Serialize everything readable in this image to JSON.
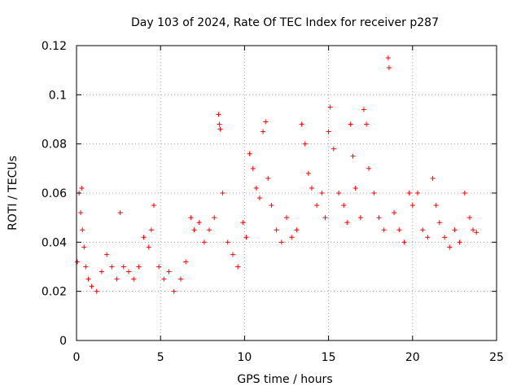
{
  "chart_data": {
    "type": "scatter",
    "title": "Day 103 of 2024, Rate Of TEC Index for receiver p287",
    "xlabel": "GPS time / hours",
    "ylabel": "ROTI / TECUs",
    "xlim": [
      0,
      25
    ],
    "ylim": [
      0,
      0.12
    ],
    "x_ticks": [
      0,
      5,
      10,
      15,
      20,
      25
    ],
    "x_tick_labels": [
      "0",
      "5",
      "10",
      "15",
      "20",
      "25"
    ],
    "y_ticks": [
      0,
      0.02,
      0.04,
      0.06,
      0.08,
      0.1,
      0.12
    ],
    "y_tick_labels": [
      "0",
      "0.02",
      "0.04",
      "0.06",
      "0.08",
      "0.1",
      "0.12"
    ],
    "grid": true,
    "marker": "+",
    "color": "#ff0000",
    "series": [
      {
        "name": "ROTI",
        "x": [
          0.05,
          0.15,
          0.25,
          0.3,
          0.35,
          0.45,
          0.55,
          0.7,
          0.9,
          1.2,
          1.5,
          1.8,
          2.1,
          2.4,
          2.6,
          2.8,
          3.1,
          3.4,
          3.7,
          4.0,
          4.3,
          4.45,
          4.6,
          4.9,
          5.2,
          5.5,
          5.8,
          6.2,
          6.5,
          6.8,
          7.0,
          7.3,
          7.6,
          7.9,
          8.2,
          8.45,
          8.5,
          8.55,
          8.7,
          9.0,
          9.3,
          9.6,
          9.9,
          10.1,
          10.3,
          10.5,
          10.7,
          10.9,
          11.1,
          11.25,
          11.4,
          11.6,
          11.9,
          12.2,
          12.5,
          12.8,
          13.1,
          13.4,
          13.6,
          13.8,
          14.0,
          14.3,
          14.6,
          14.8,
          15.0,
          15.1,
          15.3,
          15.6,
          15.9,
          16.1,
          16.3,
          16.45,
          16.6,
          16.9,
          17.1,
          17.25,
          17.4,
          17.7,
          18.0,
          18.3,
          18.55,
          18.6,
          18.9,
          19.2,
          19.5,
          19.8,
          20.0,
          20.3,
          20.6,
          20.9,
          21.2,
          21.4,
          21.6,
          21.9,
          22.2,
          22.5,
          22.8,
          23.1,
          23.4,
          23.6,
          23.8
        ],
        "y": [
          0.032,
          0.06,
          0.052,
          0.062,
          0.045,
          0.038,
          0.03,
          0.025,
          0.022,
          0.02,
          0.028,
          0.035,
          0.03,
          0.025,
          0.052,
          0.03,
          0.028,
          0.025,
          0.03,
          0.042,
          0.038,
          0.045,
          0.055,
          0.03,
          0.025,
          0.028,
          0.02,
          0.025,
          0.032,
          0.05,
          0.045,
          0.048,
          0.04,
          0.045,
          0.05,
          0.092,
          0.088,
          0.086,
          0.06,
          0.04,
          0.035,
          0.03,
          0.048,
          0.042,
          0.076,
          0.07,
          0.062,
          0.058,
          0.085,
          0.089,
          0.066,
          0.055,
          0.045,
          0.04,
          0.05,
          0.042,
          0.045,
          0.088,
          0.08,
          0.068,
          0.062,
          0.055,
          0.06,
          0.05,
          0.085,
          0.095,
          0.078,
          0.06,
          0.055,
          0.048,
          0.088,
          0.075,
          0.062,
          0.05,
          0.094,
          0.088,
          0.07,
          0.06,
          0.05,
          0.045,
          0.115,
          0.111,
          0.052,
          0.045,
          0.04,
          0.06,
          0.055,
          0.06,
          0.045,
          0.042,
          0.066,
          0.055,
          0.048,
          0.042,
          0.038,
          0.045,
          0.04,
          0.06,
          0.05,
          0.045,
          0.044
        ]
      }
    ]
  }
}
